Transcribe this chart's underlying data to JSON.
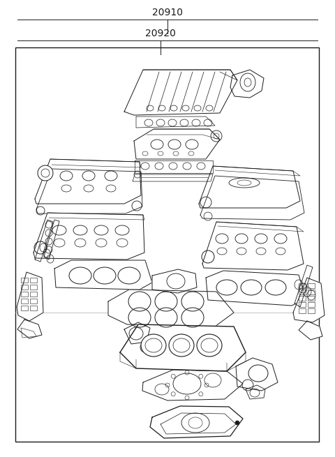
{
  "label_20910": "20910",
  "label_20920": "20920",
  "bg_color": "#ffffff",
  "line_color": "#1a1a1a",
  "fig_width": 4.8,
  "fig_height": 6.55,
  "dpi": 100,
  "lw": 0.7
}
